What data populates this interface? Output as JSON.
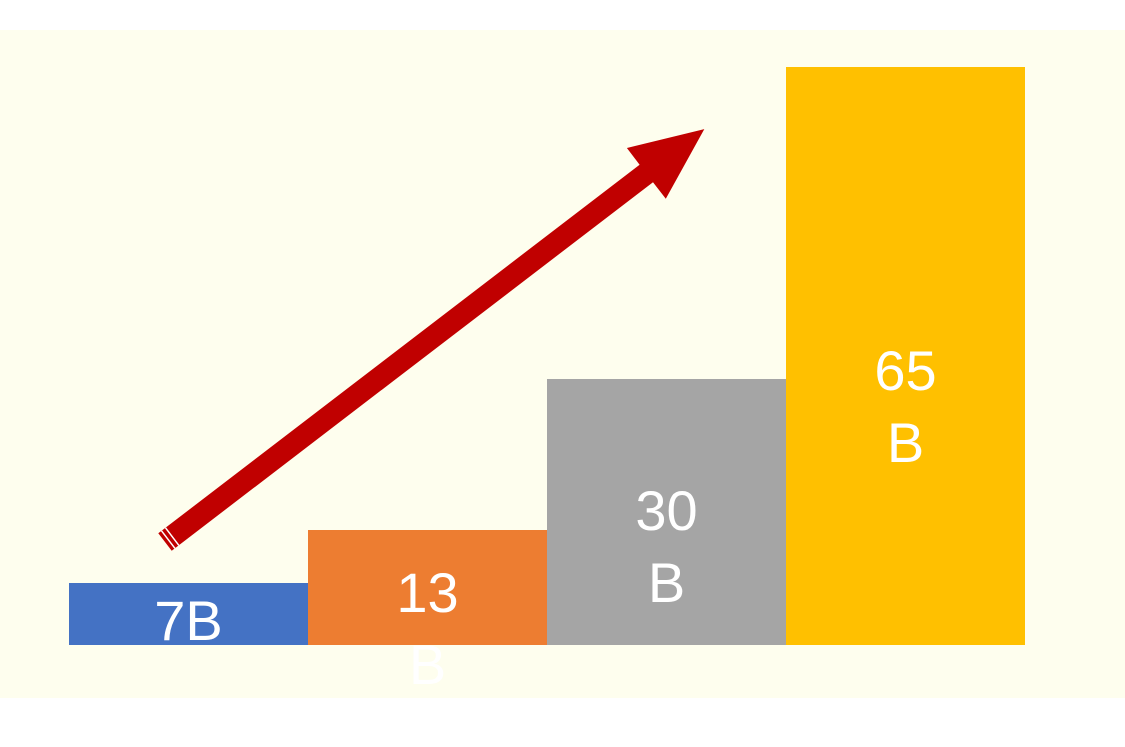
{
  "chart_data": {
    "type": "bar",
    "categories": [
      "7B",
      "13B",
      "30B",
      "65B"
    ],
    "values": [
      7,
      13,
      30,
      65
    ],
    "display_labels": [
      [
        "7B"
      ],
      [
        "13",
        "B"
      ],
      [
        "30",
        "B"
      ],
      [
        "65",
        "B"
      ]
    ],
    "colors": [
      "#4472C4",
      "#ED7D31",
      "#A5A5A5",
      "#FFC000"
    ],
    "background": "#FEFEEE",
    "arrow_color": "#C00000",
    "annotation": "trend-arrow-up",
    "title": "",
    "xlabel": "",
    "ylabel": "",
    "grid": false,
    "legend": "none"
  }
}
